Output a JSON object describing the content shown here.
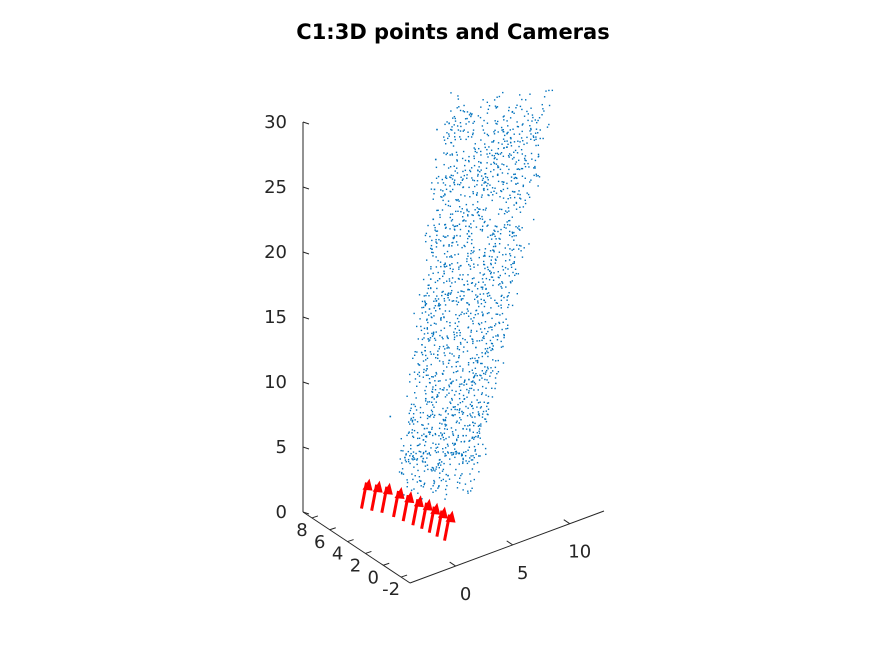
{
  "chart_data": {
    "type": "scatter",
    "title": "C1:3D points and Cameras",
    "xlabel": "",
    "ylabel": "",
    "zlabel": "",
    "xlim": [
      -4,
      13
    ],
    "ylim": [
      -3,
      9
    ],
    "zlim": [
      0,
      30
    ],
    "x_ticks": [
      "0",
      "5",
      "10"
    ],
    "y_ticks": [
      "8",
      "6",
      "4",
      "2",
      "0",
      "-2"
    ],
    "z_ticks": [
      "0",
      "5",
      "10",
      "15",
      "20",
      "25",
      "30"
    ],
    "grid": false,
    "legend": "none",
    "series": [
      {
        "kind": "points",
        "color": "#0072BD",
        "description_values": "dense point cloud; sampled points [x, y, z]",
        "points": [
          [
            1.0,
            2.0,
            6
          ],
          [
            1.5,
            2.5,
            8
          ],
          [
            2.0,
            3.0,
            10
          ],
          [
            2.5,
            3.5,
            12
          ],
          [
            3.0,
            4.0,
            14
          ],
          [
            3.5,
            4.5,
            16
          ],
          [
            4.0,
            5.0,
            18
          ],
          [
            4.5,
            5.5,
            20
          ],
          [
            5.0,
            6.0,
            22
          ],
          [
            5.5,
            6.5,
            24
          ],
          [
            6.0,
            7.0,
            26
          ],
          [
            6.5,
            7.5,
            28
          ],
          [
            3.0,
            1.0,
            7
          ],
          [
            4.0,
            1.5,
            9
          ],
          [
            5.0,
            2.0,
            11
          ],
          [
            6.0,
            2.5,
            13
          ],
          [
            7.0,
            3.0,
            15
          ],
          [
            8.0,
            3.5,
            18
          ],
          [
            9.0,
            4.0,
            21
          ],
          [
            10.0,
            4.5,
            24
          ],
          [
            11.0,
            5.0,
            27
          ],
          [
            2.0,
            0.5,
            5
          ],
          [
            0.0,
            1.0,
            5
          ],
          [
            -1.0,
            1.5,
            7
          ],
          [
            -1.5,
            2.5,
            10
          ]
        ]
      },
      {
        "kind": "cameras",
        "color": "#FF0000",
        "description_values": "camera positions [x, y, z] with upward view direction",
        "points": [
          [
            -2.0,
            5.0,
            1.5
          ],
          [
            -1.5,
            4.5,
            1.4
          ],
          [
            -1.0,
            4.0,
            1.3
          ],
          [
            -0.6,
            3.2,
            1.2
          ],
          [
            -0.3,
            2.5,
            1.1
          ],
          [
            0.0,
            1.8,
            1.0
          ],
          [
            0.3,
            1.2,
            0.9
          ],
          [
            0.5,
            0.6,
            0.8
          ],
          [
            0.7,
            0.0,
            0.7
          ],
          [
            0.9,
            -0.6,
            0.6
          ]
        ]
      }
    ]
  }
}
